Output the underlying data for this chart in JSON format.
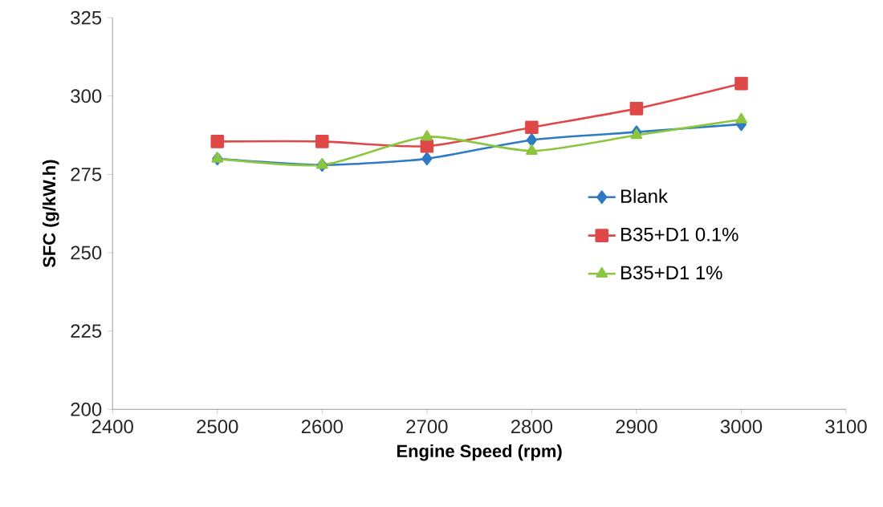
{
  "chart_data": {
    "type": "line",
    "xlabel": "Engine Speed (rpm)",
    "ylabel": "SFC (g/kW.h)",
    "x": [
      2500,
      2600,
      2700,
      2800,
      2900,
      3000
    ],
    "series": [
      {
        "name": "Blank",
        "color": "#2e7bc4",
        "marker": "diamond",
        "values": [
          280,
          278,
          280,
          286,
          288.5,
          291
        ]
      },
      {
        "name": "B35+D1 0.1%",
        "color": "#e04848",
        "marker": "square",
        "values": [
          285.5,
          285.5,
          284,
          290,
          296,
          304
        ]
      },
      {
        "name": "B35+D1 1%",
        "color": "#8cc63f",
        "marker": "triangle",
        "values": [
          280,
          278,
          287,
          282.5,
          287.5,
          292.5
        ]
      }
    ],
    "xlim": [
      2400,
      3100
    ],
    "xticks": [
      2400,
      2500,
      2600,
      2700,
      2800,
      2900,
      3000,
      3100
    ],
    "ylim": [
      200,
      325
    ],
    "yticks": [
      200,
      225,
      250,
      275,
      300,
      325
    ],
    "grid": false,
    "legend": "right",
    "line_style": "solid"
  }
}
